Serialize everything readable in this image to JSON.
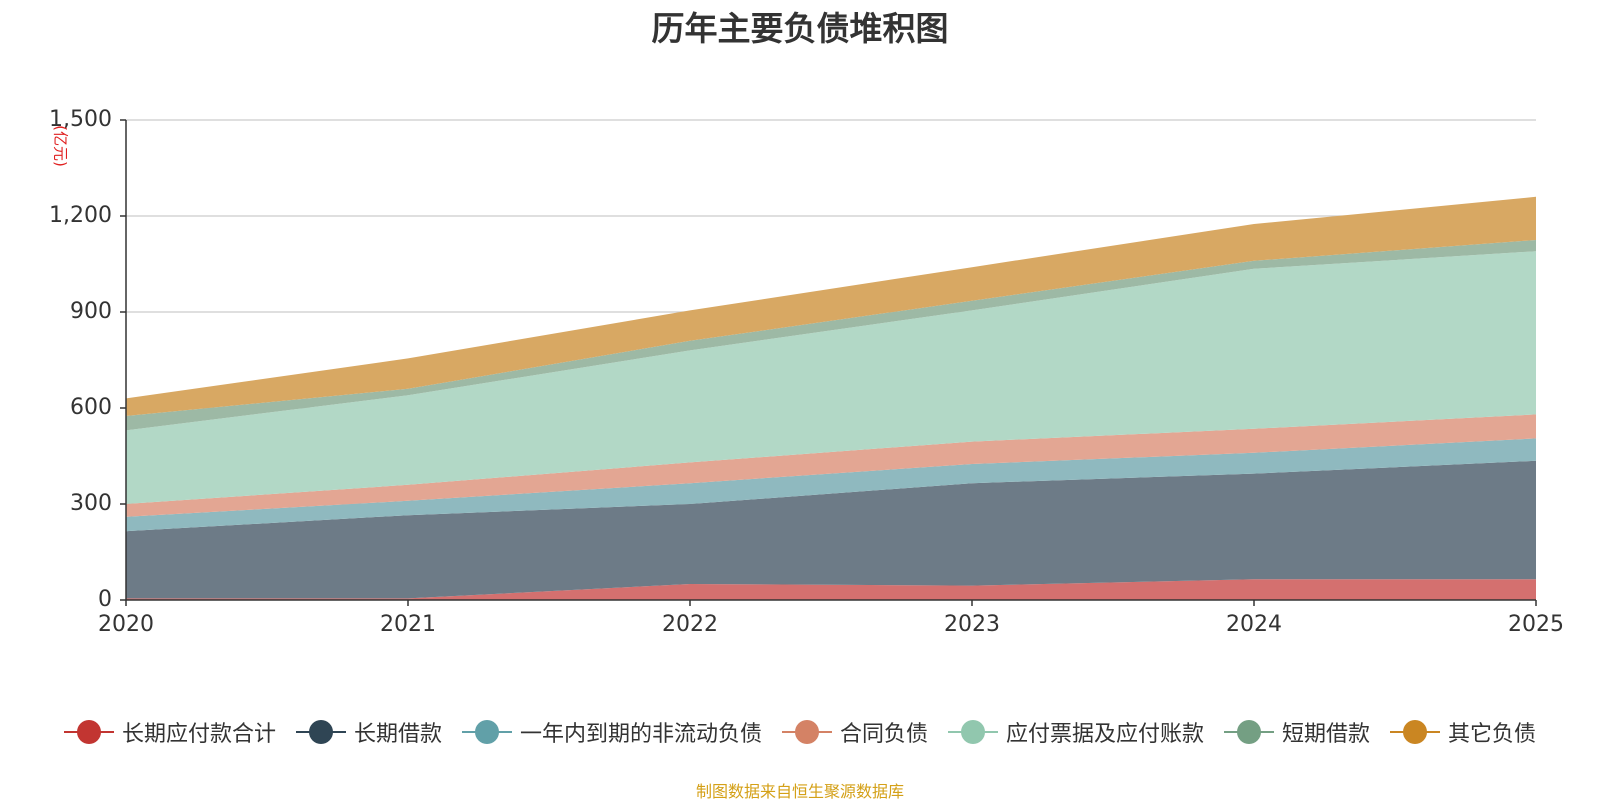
{
  "chart_data": {
    "type": "area",
    "stacked": true,
    "title": "历年主要负债堆积图",
    "unit": "(亿元)",
    "xlabel": "",
    "ylabel": "(亿元)",
    "x": [
      "2020",
      "2021",
      "2022",
      "2023",
      "2024",
      "2025"
    ],
    "ylim": [
      0,
      1500
    ],
    "yticks": [
      0,
      300,
      600,
      900,
      1200,
      1500
    ],
    "ytick_labels": [
      "0",
      "300",
      "600",
      "900",
      "1,200",
      "1,500"
    ],
    "grid": true,
    "legend_position": "bottom",
    "series": [
      {
        "name": "长期应付款合计",
        "color": "#c23531",
        "fill": "#d4706f",
        "values": [
          5,
          5,
          50,
          45,
          65,
          65
        ]
      },
      {
        "name": "长期借款",
        "color": "#2f4554",
        "fill": "#6d7b87",
        "values": [
          210,
          260,
          250,
          320,
          330,
          370
        ]
      },
      {
        "name": "一年内到期的非流动负债",
        "color": "#61a0a8",
        "fill": "#8fb9bf",
        "values": [
          45,
          45,
          65,
          60,
          65,
          70
        ]
      },
      {
        "name": "合同负债",
        "color": "#d48265",
        "fill": "#e3a693",
        "values": [
          40,
          50,
          65,
          70,
          75,
          75
        ]
      },
      {
        "name": "应付票据及应付账款",
        "color": "#91c7ae",
        "fill": "#b2d8c6",
        "values": [
          230,
          280,
          350,
          410,
          500,
          510
        ]
      },
      {
        "name": "短期借款",
        "color": "#749f83",
        "fill": "#9db9a5",
        "values": [
          45,
          20,
          30,
          30,
          25,
          35
        ]
      },
      {
        "name": "其它负债",
        "color": "#ca8622",
        "fill": "#d8a863",
        "values": [
          55,
          95,
          95,
          105,
          115,
          135
        ]
      }
    ]
  },
  "source_note": "制图数据来自恒生聚源数据库"
}
